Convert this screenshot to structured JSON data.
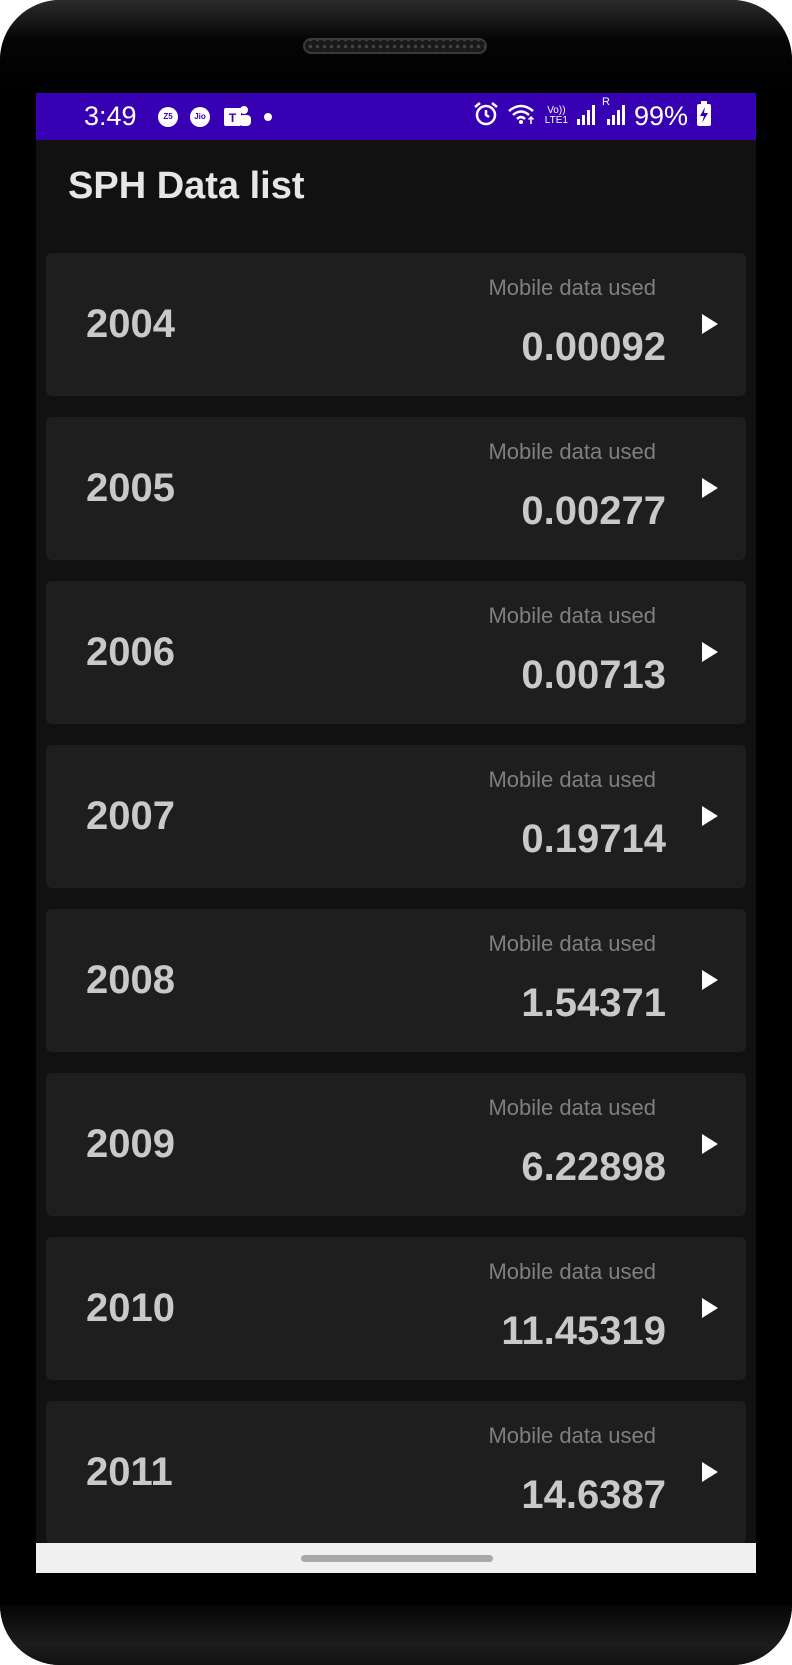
{
  "status_bar": {
    "time": "3:49",
    "left_icons": [
      "zee5-icon",
      "jio-icon",
      "teams-icon",
      "notification-dot-icon"
    ],
    "network_label_top": "Vo))",
    "network_label_bottom": "LTE1",
    "roaming_label": "R",
    "battery_percent": "99%",
    "background_color": "#3700b3"
  },
  "app": {
    "title": "SPH Data list"
  },
  "items": [
    {
      "year": "2004",
      "label": "Mobile data used",
      "value": "0.00092"
    },
    {
      "year": "2005",
      "label": "Mobile data used",
      "value": "0.00277"
    },
    {
      "year": "2006",
      "label": "Mobile data used",
      "value": "0.00713"
    },
    {
      "year": "2007",
      "label": "Mobile data used",
      "value": "0.19714"
    },
    {
      "year": "2008",
      "label": "Mobile data used",
      "value": "1.54371"
    },
    {
      "year": "2009",
      "label": "Mobile data used",
      "value": "6.22898"
    },
    {
      "year": "2010",
      "label": "Mobile data used",
      "value": "11.45319"
    },
    {
      "year": "2011",
      "label": "Mobile data used",
      "value": "14.6387"
    }
  ],
  "colors": {
    "card_background": "#1e1e1e",
    "screen_background": "#111111",
    "primary_text": "#c9c9c9",
    "secondary_text": "#7f7f7f"
  }
}
